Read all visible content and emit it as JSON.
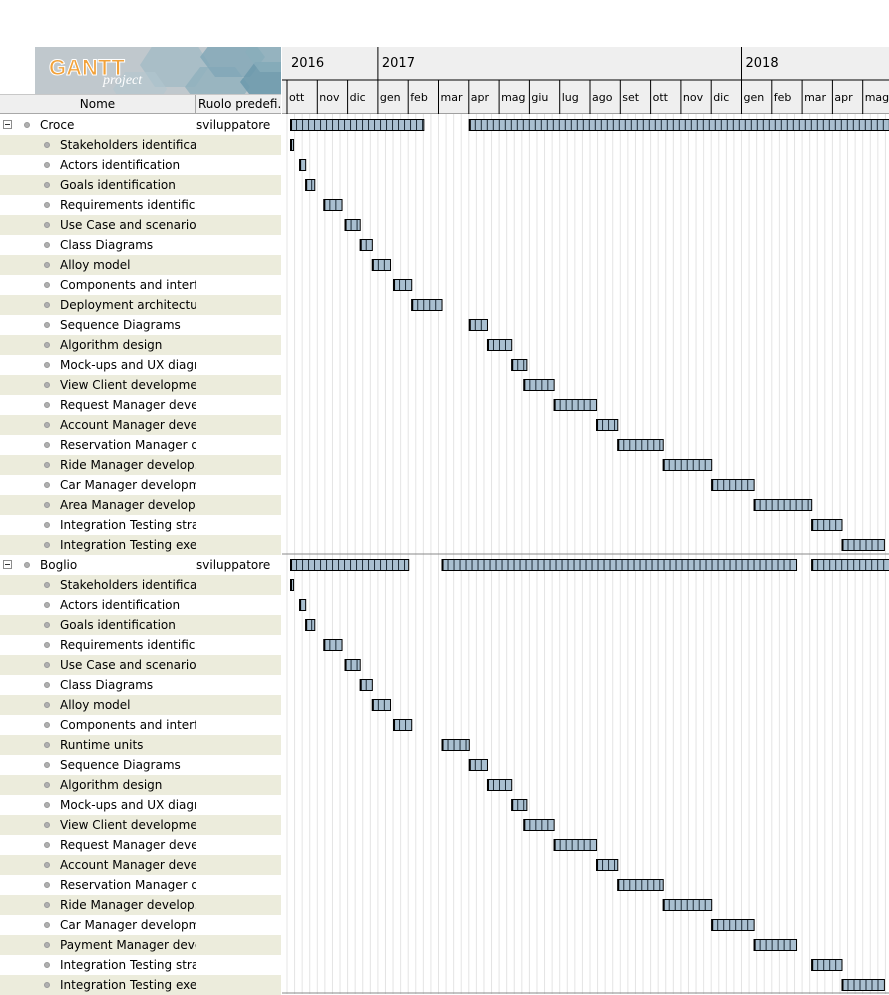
{
  "logo": {
    "word": "GANTT",
    "sub": "project"
  },
  "columns": {
    "name": "Nome",
    "role": "Ruolo predefi..."
  },
  "timeline": {
    "years": [
      {
        "label": "2016",
        "month_index": 0
      },
      {
        "label": "2017",
        "month_index": 3
      },
      {
        "label": "2018",
        "month_index": 15
      }
    ],
    "months": [
      "ott",
      "nov",
      "dic",
      "gen",
      "feb",
      "mar",
      "apr",
      "mag",
      "giu",
      "lug",
      "ago",
      "set",
      "ott",
      "nov",
      "dic",
      "gen",
      "feb",
      "mar",
      "apr",
      "mag"
    ]
  },
  "rows": [
    {
      "type": "group",
      "name": "Croce",
      "role": "sviluppatore"
    },
    {
      "type": "task",
      "name": "Stakeholders identificati..."
    },
    {
      "type": "task",
      "name": "Actors identification"
    },
    {
      "type": "task",
      "name": "Goals identification"
    },
    {
      "type": "task",
      "name": "Requirements identifica..."
    },
    {
      "type": "task",
      "name": "Use Case and scenarios"
    },
    {
      "type": "task",
      "name": "Class Diagrams"
    },
    {
      "type": "task",
      "name": "Alloy model"
    },
    {
      "type": "task",
      "name": "Components and interf..."
    },
    {
      "type": "task",
      "name": "Deployment architecture"
    },
    {
      "type": "task",
      "name": "Sequence Diagrams"
    },
    {
      "type": "task",
      "name": "Algorithm design"
    },
    {
      "type": "task",
      "name": "Mock-ups and UX diagr..."
    },
    {
      "type": "task",
      "name": "View Client development"
    },
    {
      "type": "task",
      "name": "Request Manager devel..."
    },
    {
      "type": "task",
      "name": "Account Manager devel..."
    },
    {
      "type": "task",
      "name": "Reservation Manager d..."
    },
    {
      "type": "task",
      "name": "Ride Manager develop..."
    },
    {
      "type": "task",
      "name": "Car Manager developm..."
    },
    {
      "type": "task",
      "name": "Area Manager develop..."
    },
    {
      "type": "task",
      "name": "Integration Testing strat..."
    },
    {
      "type": "task",
      "name": "Integration Testing exec..."
    },
    {
      "type": "group",
      "name": "Boglio",
      "role": "sviluppatore"
    },
    {
      "type": "task",
      "name": "Stakeholders identificati..."
    },
    {
      "type": "task",
      "name": "Actors identification"
    },
    {
      "type": "task",
      "name": "Goals identification"
    },
    {
      "type": "task",
      "name": "Requirements identifica..."
    },
    {
      "type": "task",
      "name": "Use Case and scenarios"
    },
    {
      "type": "task",
      "name": "Class Diagrams"
    },
    {
      "type": "task",
      "name": "Alloy model"
    },
    {
      "type": "task",
      "name": "Components and interf..."
    },
    {
      "type": "task",
      "name": "Runtime units"
    },
    {
      "type": "task",
      "name": "Sequence Diagrams"
    },
    {
      "type": "task",
      "name": "Algorithm design"
    },
    {
      "type": "task",
      "name": "Mock-ups and UX diagr..."
    },
    {
      "type": "task",
      "name": "View Client development"
    },
    {
      "type": "task",
      "name": "Request Manager devel..."
    },
    {
      "type": "task",
      "name": "Account Manager devel..."
    },
    {
      "type": "task",
      "name": "Reservation Manager d..."
    },
    {
      "type": "task",
      "name": "Ride Manager develop..."
    },
    {
      "type": "task",
      "name": "Car Manager developm..."
    },
    {
      "type": "task",
      "name": "Payment Manager deve..."
    },
    {
      "type": "task",
      "name": "Integration Testing strat..."
    },
    {
      "type": "task",
      "name": "Integration Testing exec..."
    }
  ],
  "chart_data": {
    "type": "gantt",
    "time_unit": "months since ott 2016",
    "bars": [
      [
        [
          0.1,
          4.5
        ],
        [
          6.0,
          20.2
        ]
      ],
      [
        [
          0.1,
          0.2
        ]
      ],
      [
        [
          0.4,
          0.6
        ]
      ],
      [
        [
          0.6,
          0.9
        ]
      ],
      [
        [
          1.2,
          1.8
        ]
      ],
      [
        [
          1.9,
          2.4
        ]
      ],
      [
        [
          2.4,
          2.8
        ]
      ],
      [
        [
          2.8,
          3.4
        ]
      ],
      [
        [
          3.5,
          4.1
        ]
      ],
      [
        [
          4.1,
          5.1
        ]
      ],
      [
        [
          6.0,
          6.6
        ]
      ],
      [
        [
          6.6,
          7.4
        ]
      ],
      [
        [
          7.4,
          7.9
        ]
      ],
      [
        [
          7.8,
          8.8
        ]
      ],
      [
        [
          8.8,
          10.2
        ]
      ],
      [
        [
          10.2,
          10.9
        ]
      ],
      [
        [
          10.9,
          12.4
        ]
      ],
      [
        [
          12.4,
          14.0
        ]
      ],
      [
        [
          14.0,
          15.4
        ]
      ],
      [
        [
          15.4,
          17.3
        ]
      ],
      [
        [
          17.3,
          18.3
        ]
      ],
      [
        [
          18.3,
          19.7
        ]
      ],
      [
        [
          0.1,
          4.0
        ],
        [
          5.1,
          16.8
        ],
        [
          17.3,
          20.2
        ]
      ],
      [
        [
          0.1,
          0.2
        ]
      ],
      [
        [
          0.4,
          0.6
        ]
      ],
      [
        [
          0.6,
          0.9
        ]
      ],
      [
        [
          1.2,
          1.8
        ]
      ],
      [
        [
          1.9,
          2.4
        ]
      ],
      [
        [
          2.4,
          2.8
        ]
      ],
      [
        [
          2.8,
          3.4
        ]
      ],
      [
        [
          3.5,
          4.1
        ]
      ],
      [
        [
          5.1,
          6.0
        ]
      ],
      [
        [
          6.0,
          6.6
        ]
      ],
      [
        [
          6.6,
          7.4
        ]
      ],
      [
        [
          7.4,
          7.9
        ]
      ],
      [
        [
          7.8,
          8.8
        ]
      ],
      [
        [
          8.8,
          10.2
        ]
      ],
      [
        [
          10.2,
          10.9
        ]
      ],
      [
        [
          10.9,
          12.4
        ]
      ],
      [
        [
          12.4,
          14.0
        ]
      ],
      [
        [
          14.0,
          15.4
        ]
      ],
      [
        [
          15.4,
          16.8
        ]
      ],
      [
        [
          17.3,
          18.3
        ]
      ],
      [
        [
          18.3,
          19.7
        ]
      ]
    ]
  }
}
